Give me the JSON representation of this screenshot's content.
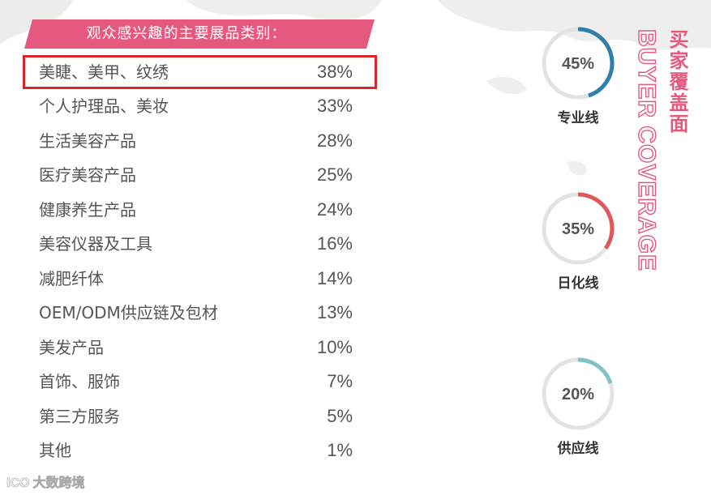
{
  "header": {
    "title": "观众感兴趣的主要展品类别："
  },
  "colors": {
    "banner": "#e5597f",
    "highlight_border": "#d9262c",
    "ring_track": "#e3e3e3",
    "ring_1": "#2f7fa8",
    "ring_2": "#e0585a",
    "ring_3": "#7fc3c3",
    "side_title": "#e5597f"
  },
  "chart_data": [
    {
      "type": "table",
      "title": "观众感兴趣的主要展品类别：",
      "highlighted_row": 0,
      "rows": [
        {
          "category": "美睫、美甲、纹绣",
          "value": "38%"
        },
        {
          "category": "个人护理品、美妆",
          "value": "33%"
        },
        {
          "category": "生活美容产品",
          "value": "28%"
        },
        {
          "category": "医疗美容产品",
          "value": "25%"
        },
        {
          "category": "健康养生产品",
          "value": "24%"
        },
        {
          "category": "美容仪器及工具",
          "value": "16%"
        },
        {
          "category": "减肥纤体",
          "value": "14%"
        },
        {
          "category": "OEM/ODM供应链及包材",
          "value": "13%"
        },
        {
          "category": "美发产品",
          "value": "10%"
        },
        {
          "category": "首饰、服饰",
          "value": "7%"
        },
        {
          "category": "第三方服务",
          "value": "5%"
        },
        {
          "category": "其他",
          "value": "1%"
        }
      ]
    },
    {
      "type": "pie",
      "title": "买家覆盖面",
      "subtitle": "BUYER COVERAGE",
      "series": [
        {
          "name": "专业线",
          "label": "45%",
          "value": 45,
          "color": "#2f7fa8"
        },
        {
          "name": "日化线",
          "label": "35%",
          "value": 35,
          "color": "#e0585a"
        },
        {
          "name": "供应线",
          "label": "20%",
          "value": 20,
          "color": "#7fc3c3"
        }
      ]
    }
  ],
  "side_title": {
    "cn": "买家覆盖面",
    "en": "BUYER COVERAGE"
  },
  "watermark": {
    "logo": "ICO",
    "text": "大数跨境"
  }
}
